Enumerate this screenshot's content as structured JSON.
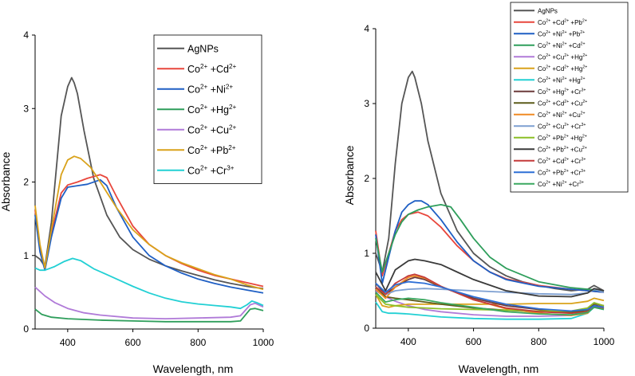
{
  "chart_data": [
    {
      "type": "line",
      "title": "",
      "xlabel": "Wavelength, nm",
      "ylabel": "Absorbance",
      "xlim": [
        300,
        1000
      ],
      "ylim": [
        0,
        4
      ],
      "xticks": [
        400,
        600,
        800,
        1000
      ],
      "yticks": [
        0,
        1,
        2,
        3,
        4
      ],
      "legend_position": "top-right",
      "series": [
        {
          "name": "AgNPs",
          "ion1": "",
          "ion2": "",
          "color": "#555555",
          "x": [
            300,
            315,
            330,
            350,
            380,
            400,
            412,
            420,
            430,
            450,
            480,
            520,
            560,
            600,
            650,
            700,
            750,
            800,
            850,
            900,
            950,
            1000
          ],
          "y": [
            1.0,
            0.95,
            0.85,
            1.45,
            2.9,
            3.3,
            3.42,
            3.35,
            3.2,
            2.7,
            2.05,
            1.55,
            1.25,
            1.08,
            0.95,
            0.86,
            0.79,
            0.73,
            0.67,
            0.62,
            0.58,
            0.55
          ]
        },
        {
          "name": "Co",
          "ion1": "2+",
          "ion2": "Cd",
          "charge2": "2+",
          "color": "#e8463c",
          "x": [
            300,
            315,
            330,
            350,
            380,
            400,
            430,
            460,
            500,
            520,
            550,
            600,
            650,
            700,
            750,
            800,
            850,
            900,
            950,
            1000
          ],
          "y": [
            1.62,
            1.1,
            0.82,
            1.3,
            1.85,
            1.96,
            2.0,
            2.05,
            2.1,
            2.06,
            1.8,
            1.4,
            1.15,
            1.0,
            0.89,
            0.8,
            0.73,
            0.68,
            0.63,
            0.58
          ]
        },
        {
          "name": "Co",
          "ion1": "2+",
          "ion2": "Ni",
          "charge2": "2+",
          "color": "#1f5fc4",
          "x": [
            300,
            315,
            330,
            350,
            380,
            400,
            430,
            460,
            500,
            520,
            550,
            600,
            650,
            700,
            750,
            800,
            850,
            900,
            950,
            1000
          ],
          "y": [
            1.55,
            1.05,
            0.8,
            1.25,
            1.78,
            1.93,
            1.95,
            1.97,
            2.03,
            1.95,
            1.65,
            1.25,
            1.0,
            0.86,
            0.76,
            0.68,
            0.62,
            0.57,
            0.53,
            0.49
          ]
        },
        {
          "name": "Co",
          "ion1": "2+",
          "ion2": "Hg",
          "charge2": "2+",
          "color": "#2e9e5b",
          "x": [
            300,
            320,
            350,
            400,
            500,
            600,
            700,
            800,
            900,
            930,
            960,
            975,
            1000
          ],
          "y": [
            0.27,
            0.2,
            0.16,
            0.14,
            0.12,
            0.11,
            0.1,
            0.1,
            0.1,
            0.11,
            0.27,
            0.28,
            0.25
          ]
        },
        {
          "name": "Co",
          "ion1": "2+",
          "ion2": "Cu",
          "charge2": "2+",
          "color": "#b07ad8",
          "x": [
            300,
            330,
            360,
            400,
            450,
            500,
            600,
            700,
            800,
            900,
            930,
            960,
            975,
            1000
          ],
          "y": [
            0.57,
            0.45,
            0.36,
            0.28,
            0.22,
            0.19,
            0.15,
            0.14,
            0.15,
            0.16,
            0.18,
            0.33,
            0.35,
            0.3
          ]
        },
        {
          "name": "Co",
          "ion1": "2+",
          "ion2": "Pb",
          "charge2": "2+",
          "color": "#d9a21b",
          "x": [
            300,
            315,
            330,
            350,
            380,
            400,
            420,
            440,
            470,
            500,
            550,
            600,
            650,
            700,
            750,
            800,
            850,
            900,
            950,
            1000
          ],
          "y": [
            1.68,
            1.15,
            0.83,
            1.35,
            2.1,
            2.3,
            2.35,
            2.32,
            2.2,
            2.0,
            1.65,
            1.35,
            1.15,
            1.0,
            0.9,
            0.82,
            0.74,
            0.68,
            0.6,
            0.54
          ]
        },
        {
          "name": "Co",
          "ion1": "2+",
          "ion2": "Cr",
          "charge2": "3+",
          "color": "#22d0d4",
          "x": [
            300,
            315,
            330,
            360,
            390,
            415,
            440,
            480,
            520,
            560,
            600,
            650,
            700,
            750,
            800,
            850,
            900,
            930,
            950,
            965,
            980,
            1000
          ],
          "y": [
            0.83,
            0.8,
            0.8,
            0.85,
            0.92,
            0.96,
            0.93,
            0.82,
            0.74,
            0.66,
            0.58,
            0.49,
            0.42,
            0.37,
            0.34,
            0.32,
            0.3,
            0.28,
            0.33,
            0.38,
            0.36,
            0.32
          ]
        }
      ]
    },
    {
      "type": "line",
      "title": "",
      "xlabel": "Wavelength, nm",
      "ylabel": "Absorbance",
      "xlim": [
        300,
        1000
      ],
      "ylim": [
        0,
        4
      ],
      "xticks": [
        400,
        600,
        800,
        1000
      ],
      "yticks": [
        0,
        1,
        2,
        3,
        4
      ],
      "legend_position": "top-right",
      "series": [
        {
          "name": "AgNPs",
          "ion1": "",
          "ion2": "",
          "color": "#555555",
          "x": [
            300,
            320,
            340,
            360,
            380,
            400,
            412,
            420,
            440,
            460,
            500,
            550,
            600,
            650,
            700,
            750,
            800,
            850,
            900,
            950,
            970,
            1000
          ],
          "y": [
            1.0,
            0.75,
            1.2,
            2.2,
            3.0,
            3.35,
            3.43,
            3.35,
            3.0,
            2.5,
            1.8,
            1.3,
            1.0,
            0.82,
            0.7,
            0.62,
            0.57,
            0.53,
            0.5,
            0.52,
            0.57,
            0.5
          ]
        },
        {
          "name": "Co",
          "ion1": "2+",
          "ion2": "Cd",
          "charge2": "2+",
          "ion3": "Pb",
          "charge3": "2+",
          "color": "#e8463c",
          "x": [
            300,
            320,
            340,
            360,
            380,
            400,
            430,
            460,
            500,
            550,
            600,
            650,
            700,
            800,
            900,
            1000
          ],
          "y": [
            1.3,
            0.7,
            1.0,
            1.3,
            1.45,
            1.52,
            1.55,
            1.5,
            1.35,
            1.1,
            0.9,
            0.75,
            0.66,
            0.57,
            0.52,
            0.48
          ]
        },
        {
          "name": "Co",
          "ion1": "2+",
          "ion2": "Ni",
          "charge2": "2+",
          "ion3": "Pb",
          "charge3": "2+",
          "color": "#1f5fc4",
          "x": [
            300,
            320,
            340,
            360,
            380,
            400,
            420,
            440,
            460,
            500,
            550,
            600,
            650,
            700,
            800,
            900,
            1000
          ],
          "y": [
            1.25,
            0.6,
            0.95,
            1.3,
            1.55,
            1.65,
            1.7,
            1.7,
            1.65,
            1.45,
            1.15,
            0.9,
            0.75,
            0.65,
            0.56,
            0.52,
            0.48
          ]
        },
        {
          "name": "Co",
          "ion1": "2+",
          "ion2": "Ni",
          "charge2": "2+",
          "ion3": "Cd",
          "charge3": "2+",
          "color": "#2e9e5b",
          "x": [
            300,
            320,
            340,
            360,
            380,
            400,
            430,
            460,
            500,
            530,
            560,
            600,
            650,
            700,
            800,
            900,
            1000
          ],
          "y": [
            1.2,
            0.75,
            1.0,
            1.25,
            1.42,
            1.52,
            1.58,
            1.62,
            1.65,
            1.62,
            1.45,
            1.2,
            0.95,
            0.8,
            0.62,
            0.54,
            0.5
          ]
        },
        {
          "name": "Co",
          "ion1": "2+",
          "ion2": "Cu",
          "charge2": "2+",
          "ion3": "Hg",
          "charge3": "2+",
          "color": "#b07ad8",
          "x": [
            300,
            330,
            360,
            400,
            450,
            500,
            600,
            700,
            800,
            900,
            950,
            970,
            1000
          ],
          "y": [
            0.5,
            0.42,
            0.36,
            0.3,
            0.25,
            0.22,
            0.18,
            0.16,
            0.16,
            0.17,
            0.22,
            0.3,
            0.27
          ]
        },
        {
          "name": "Co",
          "ion1": "2+",
          "ion2": "Cd",
          "charge2": "2+",
          "ion3": "Hg",
          "charge3": "2+",
          "color": "#d9a21b",
          "x": [
            300,
            320,
            340,
            360,
            400,
            450,
            500,
            600,
            700,
            800,
            900,
            950,
            970,
            1000
          ],
          "y": [
            0.45,
            0.3,
            0.28,
            0.3,
            0.32,
            0.32,
            0.32,
            0.32,
            0.32,
            0.33,
            0.33,
            0.36,
            0.4,
            0.37
          ]
        },
        {
          "name": "Co",
          "ion1": "2+",
          "ion2": "Ni",
          "charge2": "2+",
          "ion3": "Hg",
          "charge3": "2+",
          "color": "#22d0d4",
          "x": [
            300,
            320,
            340,
            360,
            400,
            450,
            500,
            600,
            700,
            800,
            900,
            950,
            970,
            1000
          ],
          "y": [
            0.35,
            0.22,
            0.2,
            0.2,
            0.19,
            0.17,
            0.15,
            0.13,
            0.12,
            0.12,
            0.13,
            0.2,
            0.28,
            0.25
          ]
        },
        {
          "name": "Co",
          "ion1": "2+",
          "ion2": "Hg",
          "charge2": "2+",
          "ion3": "Cr",
          "charge3": "3+",
          "color": "#6b3a3a",
          "x": [
            300,
            330,
            360,
            400,
            420,
            450,
            500,
            600,
            700,
            800,
            900,
            950,
            970,
            1000
          ],
          "y": [
            0.6,
            0.45,
            0.55,
            0.65,
            0.68,
            0.65,
            0.55,
            0.4,
            0.3,
            0.25,
            0.22,
            0.25,
            0.33,
            0.3
          ]
        },
        {
          "name": "Co",
          "ion1": "2+",
          "ion2": "Cd",
          "charge2": "2+",
          "ion3": "Cu",
          "charge3": "2+",
          "color": "#5c5c1a",
          "x": [
            300,
            330,
            360,
            400,
            450,
            500,
            600,
            700,
            800,
            900,
            950,
            970,
            1000
          ],
          "y": [
            0.55,
            0.42,
            0.4,
            0.38,
            0.35,
            0.32,
            0.27,
            0.24,
            0.22,
            0.21,
            0.24,
            0.31,
            0.28
          ]
        },
        {
          "name": "Co",
          "ion1": "2+",
          "ion2": "Ni",
          "charge2": "2+",
          "ion3": "Cu",
          "charge3": "2+",
          "color": "#f08a24",
          "x": [
            300,
            330,
            360,
            400,
            420,
            450,
            500,
            600,
            700,
            800,
            900,
            950,
            970,
            1000
          ],
          "y": [
            0.52,
            0.4,
            0.55,
            0.68,
            0.7,
            0.67,
            0.56,
            0.38,
            0.26,
            0.2,
            0.17,
            0.2,
            0.3,
            0.27
          ]
        },
        {
          "name": "Co",
          "ion1": "2+",
          "ion2": "Cu",
          "charge2": "2+",
          "ion3": "Cr",
          "charge3": "3+",
          "color": "#7d9fd1",
          "x": [
            300,
            330,
            360,
            400,
            450,
            500,
            600,
            700,
            800,
            900,
            950,
            970,
            1000
          ],
          "y": [
            0.55,
            0.45,
            0.5,
            0.52,
            0.53,
            0.52,
            0.5,
            0.48,
            0.46,
            0.45,
            0.47,
            0.52,
            0.48
          ]
        },
        {
          "name": "Co",
          "ion1": "2+",
          "ion2": "Pb",
          "charge2": "2+",
          "ion3": "Hg",
          "charge3": "2+",
          "color": "#8cbf26",
          "x": [
            300,
            330,
            360,
            400,
            450,
            500,
            600,
            700,
            800,
            900,
            950,
            970,
            1000
          ],
          "y": [
            0.45,
            0.32,
            0.3,
            0.28,
            0.27,
            0.26,
            0.25,
            0.24,
            0.23,
            0.23,
            0.27,
            0.34,
            0.3
          ]
        },
        {
          "name": "Co",
          "ion1": "2+",
          "ion2": "Pb",
          "charge2": "2+",
          "ion3": "Cu",
          "charge3": "2+",
          "color": "#3a3a3a",
          "x": [
            300,
            330,
            360,
            400,
            420,
            450,
            500,
            550,
            600,
            700,
            800,
            900,
            950,
            970,
            1000
          ],
          "y": [
            0.75,
            0.5,
            0.78,
            0.9,
            0.92,
            0.9,
            0.85,
            0.75,
            0.65,
            0.5,
            0.43,
            0.42,
            0.47,
            0.53,
            0.5
          ]
        },
        {
          "name": "Co",
          "ion1": "2+",
          "ion2": "Cd",
          "charge2": "2+",
          "ion3": "Cr",
          "charge3": "3+",
          "color": "#c43a3a",
          "x": [
            300,
            330,
            360,
            400,
            420,
            450,
            500,
            600,
            700,
            800,
            900,
            950,
            970,
            1000
          ],
          "y": [
            0.55,
            0.45,
            0.6,
            0.7,
            0.72,
            0.68,
            0.56,
            0.38,
            0.27,
            0.22,
            0.2,
            0.22,
            0.28,
            0.26
          ]
        },
        {
          "name": "Co",
          "ion1": "2+",
          "ion2": "Pb",
          "charge2": "2+",
          "ion3": "Cr",
          "charge3": "3+",
          "color": "#2d6fd6",
          "x": [
            300,
            330,
            360,
            400,
            450,
            500,
            600,
            700,
            800,
            900,
            950,
            970,
            1000
          ],
          "y": [
            0.6,
            0.48,
            0.58,
            0.62,
            0.6,
            0.55,
            0.42,
            0.32,
            0.26,
            0.23,
            0.25,
            0.3,
            0.28
          ]
        },
        {
          "name": "Co",
          "ion1": "2+",
          "ion2": "Ni",
          "charge2": "2+",
          "ion3": "Cr",
          "charge3": "3+",
          "color": "#3aa860",
          "x": [
            300,
            330,
            360,
            400,
            450,
            500,
            600,
            700,
            800,
            900,
            950,
            970,
            1000
          ],
          "y": [
            0.48,
            0.35,
            0.38,
            0.4,
            0.38,
            0.34,
            0.28,
            0.22,
            0.19,
            0.18,
            0.21,
            0.28,
            0.25
          ]
        }
      ]
    }
  ]
}
